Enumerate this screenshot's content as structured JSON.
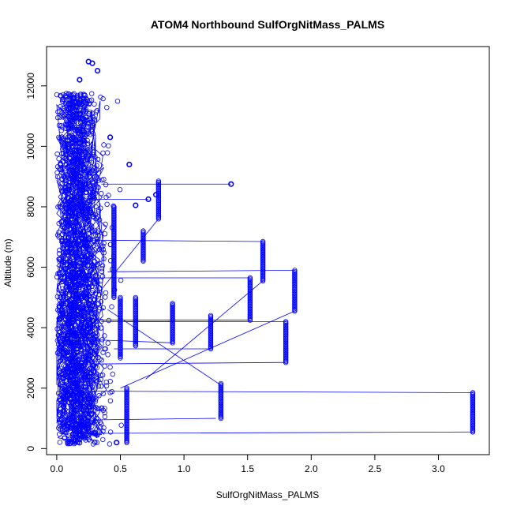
{
  "chart_data": {
    "type": "scatter",
    "title": "ATOM4 Northbound SulfOrgNitMass_PALMS",
    "xlabel": "SulfOrgNitMass_PALMS",
    "ylabel": "Altitude (m)",
    "xlim": [
      -0.08,
      3.4
    ],
    "ylim": [
      -200,
      13300
    ],
    "x_ticks": [
      0.0,
      0.5,
      1.0,
      1.5,
      2.0,
      2.5,
      3.0
    ],
    "x_tick_labels": [
      "0.0",
      "0.5",
      "1.0",
      "1.5",
      "2.0",
      "2.5",
      "3.0"
    ],
    "y_ticks": [
      0,
      2000,
      4000,
      6000,
      8000,
      10000,
      12000
    ],
    "y_tick_labels": [
      "0",
      "2000",
      "4000",
      "6000",
      "8000",
      "10000",
      "12000"
    ],
    "grid": false,
    "series_color": "#0000ff",
    "marker": "open-circle",
    "series": [
      {
        "columns": [
          {
            "x": 3.27,
            "y_min": 550,
            "y_max": 1850
          },
          {
            "x": 1.87,
            "y_min": 4550,
            "y_max": 5900
          },
          {
            "x": 1.8,
            "y_min": 2850,
            "y_max": 4200
          },
          {
            "x": 1.62,
            "y_min": 5550,
            "y_max": 6850
          },
          {
            "x": 1.52,
            "y_min": 4250,
            "y_max": 5650
          },
          {
            "x": 1.29,
            "y_min": 1000,
            "y_max": 2150
          },
          {
            "x": 1.21,
            "y_min": 3300,
            "y_max": 4400
          },
          {
            "x": 0.91,
            "y_min": 3500,
            "y_max": 4800
          },
          {
            "x": 0.8,
            "y_min": 7600,
            "y_max": 8850
          },
          {
            "x": 0.68,
            "y_min": 6200,
            "y_max": 7200
          },
          {
            "x": 0.62,
            "y_min": 3400,
            "y_max": 5000
          },
          {
            "x": 0.55,
            "y_min": 200,
            "y_max": 2000
          },
          {
            "x": 0.5,
            "y_min": 3000,
            "y_max": 5000
          },
          {
            "x": 0.45,
            "y_min": 5000,
            "y_max": 8000
          }
        ],
        "points": [
          {
            "x": 1.37,
            "y": 8750
          },
          {
            "x": 0.32,
            "y": 12500
          },
          {
            "x": 0.25,
            "y": 12800
          },
          {
            "x": 0.28,
            "y": 12750
          },
          {
            "x": 0.18,
            "y": 12200
          },
          {
            "x": 0.13,
            "y": 11600
          },
          {
            "x": 0.11,
            "y": 11400
          },
          {
            "x": 0.09,
            "y": 11000
          },
          {
            "x": 0.42,
            "y": 10300
          },
          {
            "x": 0.57,
            "y": 9400
          },
          {
            "x": 0.72,
            "y": 8250
          },
          {
            "x": 0.62,
            "y": 8050
          },
          {
            "x": 0.78,
            "y": 8400
          },
          {
            "x": 0.47,
            "y": 200
          },
          {
            "x": 0.02,
            "y": 4300
          },
          {
            "x": 0.03,
            "y": 9400
          }
        ]
      }
    ]
  }
}
